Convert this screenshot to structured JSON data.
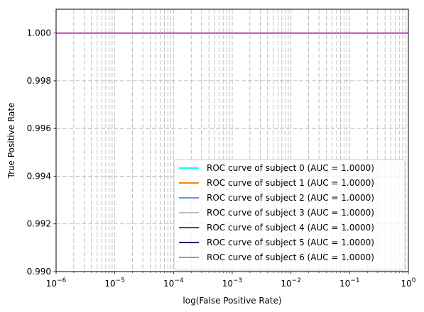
{
  "chart_data": {
    "type": "line",
    "title": "",
    "xlabel": "log(False Positive Rate)",
    "ylabel": "True Positive Rate",
    "xscale": "log",
    "xlim": [
      1e-06,
      1
    ],
    "ylim": [
      0.99,
      1.001
    ],
    "grid": true,
    "grid_style": "dashed",
    "legend_position": "lower-right",
    "x_ticks": [
      {
        "value": 1e-06,
        "base": "10",
        "exp": "−6"
      },
      {
        "value": 1e-05,
        "base": "10",
        "exp": "−5"
      },
      {
        "value": 0.0001,
        "base": "10",
        "exp": "−4"
      },
      {
        "value": 0.001,
        "base": "10",
        "exp": "−3"
      },
      {
        "value": 0.01,
        "base": "10",
        "exp": "−2"
      },
      {
        "value": 0.1,
        "base": "10",
        "exp": "−1"
      },
      {
        "value": 1,
        "base": "10",
        "exp": "0"
      }
    ],
    "y_ticks": [
      {
        "value": 0.99,
        "label": "0.990"
      },
      {
        "value": 0.992,
        "label": "0.992"
      },
      {
        "value": 0.994,
        "label": "0.994"
      },
      {
        "value": 0.996,
        "label": "0.996"
      },
      {
        "value": 0.998,
        "label": "0.998"
      },
      {
        "value": 1.0,
        "label": "1.000"
      }
    ],
    "series": [
      {
        "name": "ROC curve of subject 0 (AUC = 1.0000)",
        "color": "#00ffff",
        "x": [
          1e-06,
          1
        ],
        "y": [
          1.0,
          1.0
        ]
      },
      {
        "name": "ROC curve of subject 1 (AUC = 1.0000)",
        "color": "#ff7f0e",
        "x": [
          1e-06,
          1
        ],
        "y": [
          1.0,
          1.0
        ]
      },
      {
        "name": "ROC curve of subject 2 (AUC = 1.0000)",
        "color": "#6495ed",
        "x": [
          1e-06,
          1
        ],
        "y": [
          1.0,
          1.0
        ]
      },
      {
        "name": "ROC curve of subject 3 (AUC = 1.0000)",
        "color": "#c0c0c0",
        "x": [
          1e-06,
          1
        ],
        "y": [
          1.0,
          1.0
        ]
      },
      {
        "name": "ROC curve of subject 4 (AUC = 1.0000)",
        "color": "#a52a2a",
        "x": [
          1e-06,
          1
        ],
        "y": [
          1.0,
          1.0
        ]
      },
      {
        "name": "ROC curve of subject 5 (AUC = 1.0000)",
        "color": "#000080",
        "x": [
          1e-06,
          1
        ],
        "y": [
          1.0,
          1.0
        ]
      },
      {
        "name": "ROC curve of subject 6 (AUC = 1.0000)",
        "color": "#da70d6",
        "x": [
          1e-06,
          1
        ],
        "y": [
          1.0,
          1.0
        ]
      }
    ]
  }
}
